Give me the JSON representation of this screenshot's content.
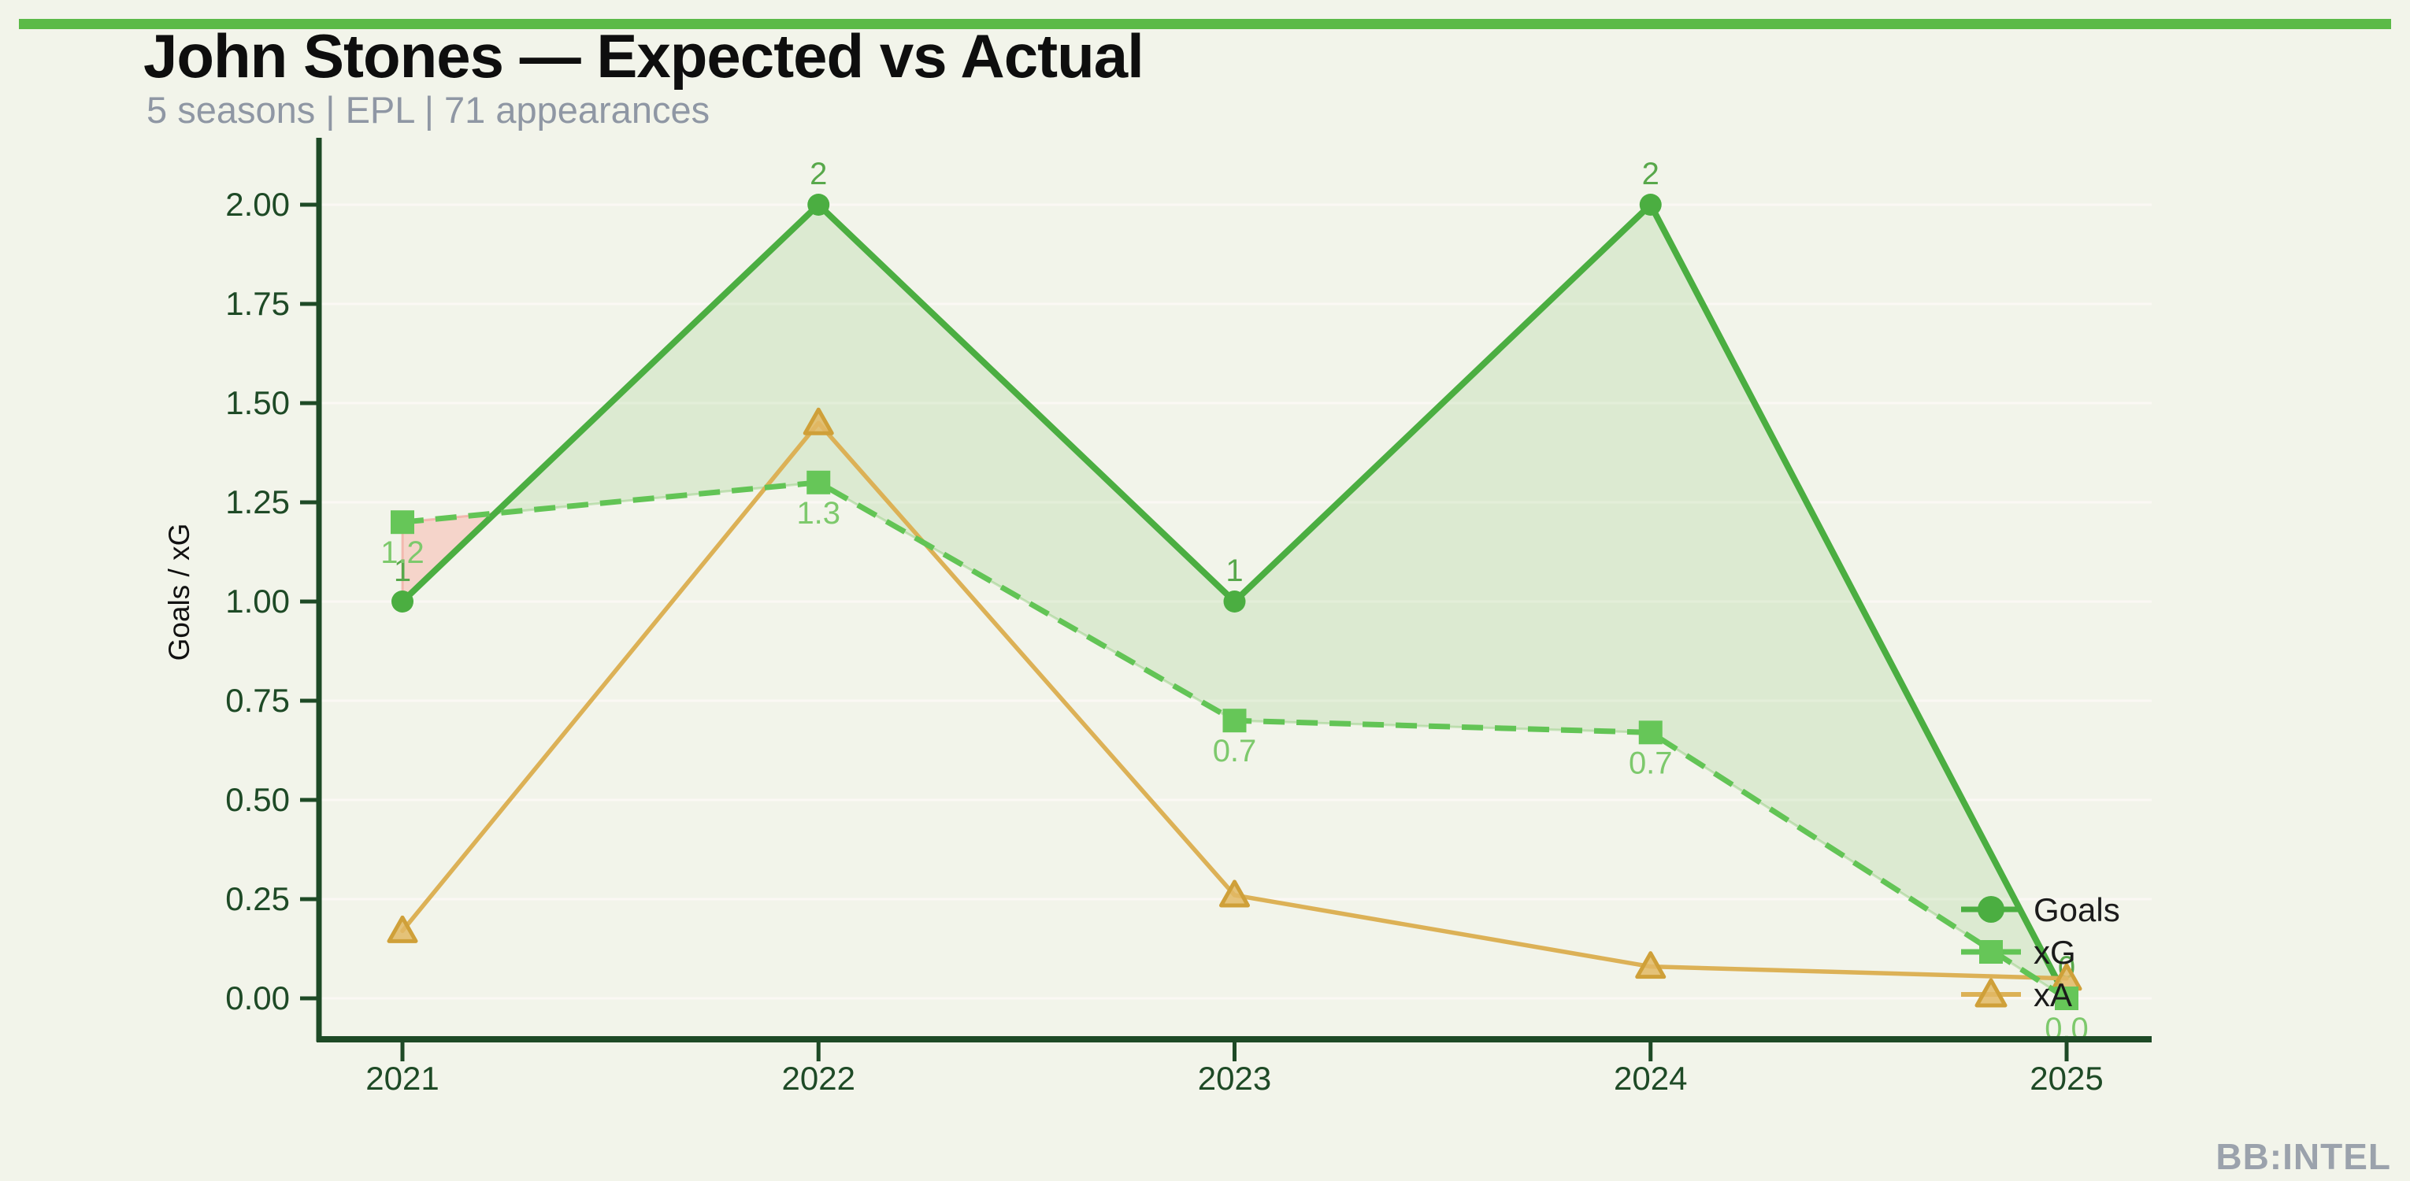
{
  "page": {
    "background": "#f2f4ea",
    "accent_bar_color": "#5bba48",
    "watermark": "BB:INTEL"
  },
  "header": {
    "title": "John Stones — Expected vs Actual",
    "subtitle": "5 seasons | EPL | 71 appearances"
  },
  "chart_data": {
    "type": "line",
    "title": "John Stones — Expected vs Actual",
    "subtitle": "5 seasons | EPL | 71 appearances",
    "xlabel": "",
    "ylabel": "Goals / xG",
    "x": [
      2021,
      2022,
      2023,
      2024,
      2025
    ],
    "x_tick_labels": [
      "2021",
      "2022",
      "2023",
      "2024",
      "2025"
    ],
    "y_ticks": [
      "2.00",
      "1.75",
      "1.50",
      "1.25",
      "1.00",
      "0.75",
      "0.50",
      "0.25",
      "0.00"
    ],
    "ylim": [
      0,
      2.1
    ],
    "grid": "faint horizontal gridlines at 0.25 intervals",
    "legend_position": "inside right, beside final data points",
    "axis_color": "#1e4a26",
    "gridline_color": "rgba(255,250,248,0.7)",
    "series": [
      {
        "name": "Goals",
        "marker": "circle",
        "line_style": "solid",
        "color": "#4bae41",
        "label_color": "#58a84b",
        "values": [
          1,
          2,
          1,
          2,
          0
        ],
        "point_labels": [
          "1",
          "2",
          "1",
          "2",
          "0"
        ]
      },
      {
        "name": "xG",
        "marker": "square",
        "line_style": "dashed",
        "color": "#62c455",
        "marker_color": "#66c658",
        "label_color": "#7dc96c",
        "values": [
          1.2,
          1.3,
          0.7,
          0.67,
          0.0
        ],
        "point_labels": [
          "1.2",
          "1.3",
          "0.7",
          "0.7",
          "0.0"
        ]
      },
      {
        "name": "xA",
        "marker": "triangle",
        "line_style": "solid",
        "color": "#dcb156",
        "marker_color": "rgba(226,185,100,0.85)",
        "marker_edge": "#cfa039",
        "values": [
          0.17,
          1.45,
          0.26,
          0.08,
          0.05
        ],
        "point_labels": []
      }
    ],
    "fills": [
      {
        "where": "Goals >= xG",
        "color": "rgba(96,180,70,0.15)",
        "edge": "rgba(130,200,110,0.4)"
      },
      {
        "where": "xG > Goals",
        "color": "rgba(250,160,150,0.38)",
        "edge": "rgba(240,150,140,0.55)"
      }
    ]
  },
  "legend": {
    "items": [
      {
        "label": "Goals"
      },
      {
        "label": "xG"
      },
      {
        "label": "xA"
      }
    ]
  }
}
